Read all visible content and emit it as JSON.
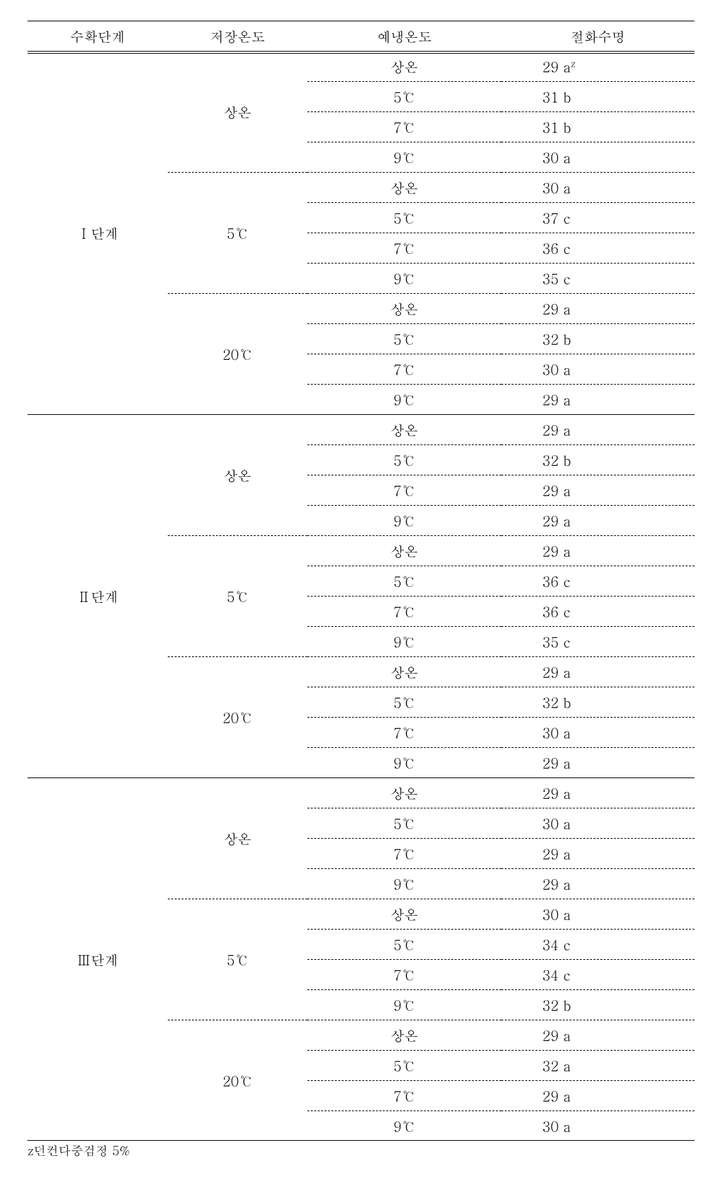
{
  "headers": {
    "harvest_stage": "수확단계",
    "storage_temp": "저장온도",
    "precool_temp": "예냉온도",
    "vase_life": "절화수명"
  },
  "stages": [
    {
      "label": "Ⅰ단계",
      "storages": [
        {
          "label": "상온",
          "rows": [
            {
              "precool": "상온",
              "life": "29 a",
              "has_super_z": true
            },
            {
              "precool": "5℃",
              "life": "31 b"
            },
            {
              "precool": "7℃",
              "life": "31 b"
            },
            {
              "precool": "9℃",
              "life": "30 a"
            }
          ]
        },
        {
          "label": "5℃",
          "rows": [
            {
              "precool": "상온",
              "life": "30 a"
            },
            {
              "precool": "5℃",
              "life": "37 c"
            },
            {
              "precool": "7℃",
              "life": "36 c"
            },
            {
              "precool": "9℃",
              "life": "35 c"
            }
          ]
        },
        {
          "label": "20℃",
          "rows": [
            {
              "precool": "상온",
              "life": "29 a"
            },
            {
              "precool": "5℃",
              "life": "32 b"
            },
            {
              "precool": "7℃",
              "life": "30 a"
            },
            {
              "precool": "9℃",
              "life": "29 a"
            }
          ]
        }
      ]
    },
    {
      "label": "Ⅱ단계",
      "storages": [
        {
          "label": "상온",
          "rows": [
            {
              "precool": "상온",
              "life": "29 a"
            },
            {
              "precool": "5℃",
              "life": "32 b"
            },
            {
              "precool": "7℃",
              "life": "29 a"
            },
            {
              "precool": "9℃",
              "life": "29 a"
            }
          ]
        },
        {
          "label": "5℃",
          "rows": [
            {
              "precool": "상온",
              "life": "29 a"
            },
            {
              "precool": "5℃",
              "life": "36 c"
            },
            {
              "precool": "7℃",
              "life": "36 c"
            },
            {
              "precool": "9℃",
              "life": "35 c"
            }
          ]
        },
        {
          "label": "20℃",
          "rows": [
            {
              "precool": "상온",
              "life": "29 a"
            },
            {
              "precool": "5℃",
              "life": "32 b"
            },
            {
              "precool": "7℃",
              "life": "30 a"
            },
            {
              "precool": "9℃",
              "life": "29 a"
            }
          ]
        }
      ]
    },
    {
      "label": "Ⅲ단계",
      "storages": [
        {
          "label": "상온",
          "rows": [
            {
              "precool": "상온",
              "life": "29 a"
            },
            {
              "precool": "5℃",
              "life": "30 a"
            },
            {
              "precool": "7℃",
              "life": "29 a"
            },
            {
              "precool": "9℃",
              "life": "29 a"
            }
          ]
        },
        {
          "label": "5℃",
          "rows": [
            {
              "precool": "상온",
              "life": "30 a"
            },
            {
              "precool": "5℃",
              "life": "34 c"
            },
            {
              "precool": "7℃",
              "life": "34 c"
            },
            {
              "precool": "9℃",
              "life": "32 b"
            }
          ]
        },
        {
          "label": "20℃",
          "rows": [
            {
              "precool": "상온",
              "life": "29 a"
            },
            {
              "precool": "5℃",
              "life": "32 a"
            },
            {
              "precool": "7℃",
              "life": "29 a"
            },
            {
              "precool": "9℃",
              "life": "30 a"
            }
          ]
        }
      ]
    }
  ],
  "footnote": "z던컨다중검정 5%"
}
